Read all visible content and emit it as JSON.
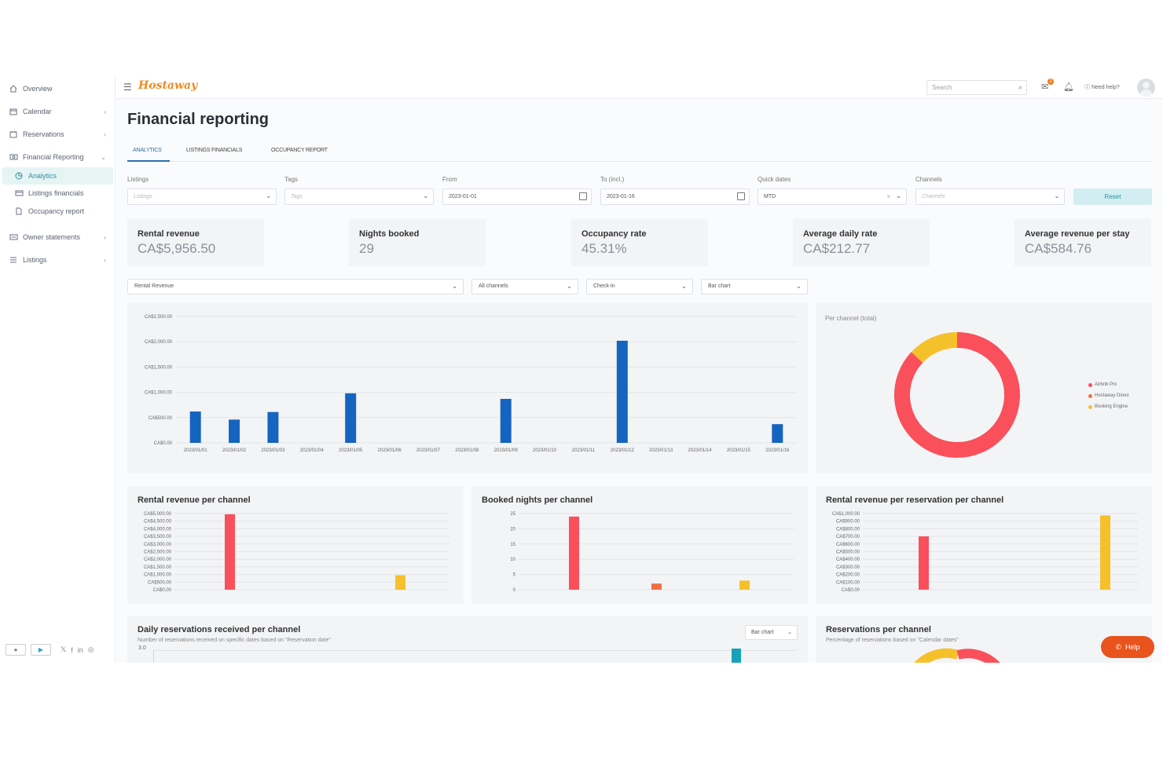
{
  "app": {
    "logo": "Hostaway"
  },
  "sidebar": {
    "items": [
      {
        "label": "Overview",
        "icon": "home-icon",
        "chevron": ""
      },
      {
        "label": "Calendar",
        "icon": "calendar-icon",
        "chevron": "‹"
      },
      {
        "label": "Reservations",
        "icon": "reservations-icon",
        "chevron": "‹"
      },
      {
        "label": "Financial Reporting",
        "icon": "financial-icon",
        "chevron": "⌄"
      },
      {
        "label": "Analytics",
        "icon": "pie-icon",
        "chevron": ""
      },
      {
        "label": "Listings financials",
        "icon": "card-icon",
        "chevron": ""
      },
      {
        "label": "Occupancy report",
        "icon": "document-icon",
        "chevron": ""
      },
      {
        "label": "Owner statements",
        "icon": "statement-icon",
        "chevron": "‹"
      },
      {
        "label": "Listings",
        "icon": "list-icon",
        "chevron": "‹"
      }
    ],
    "social": {
      "twitter": "𝕏",
      "facebook": "f",
      "linkedin": "in",
      "instagram": "◎"
    }
  },
  "topbar": {
    "search_placeholder": "Search",
    "notification_count": "2",
    "need_help": "Need help?"
  },
  "page": {
    "title": "Financial reporting"
  },
  "tabs": [
    "ANALYTICS",
    "LISTINGS FINANCIALS",
    "OCCUPANCY REPORT"
  ],
  "filters": {
    "listings": {
      "label": "Listings",
      "placeholder": "Listings"
    },
    "tags": {
      "label": "Tags",
      "placeholder": "Tags"
    },
    "from": {
      "label": "From",
      "value": "2023-01-01"
    },
    "to": {
      "label": "To (incl.)",
      "value": "2023-01-16"
    },
    "quick_dates": {
      "label": "Quick dates",
      "value": "MTD"
    },
    "channels": {
      "label": "Channels",
      "placeholder": "Channels"
    },
    "reset": "Reset"
  },
  "kpis": [
    {
      "label": "Rental revenue",
      "value": "CA$5,956.50"
    },
    {
      "label": "Nights booked",
      "value": "29"
    },
    {
      "label": "Occupancy rate",
      "value": "45.31%"
    },
    {
      "label": "Average daily rate",
      "value": "CA$212.77"
    },
    {
      "label": "Average revenue per stay",
      "value": "CA$584.76"
    }
  ],
  "chart_controls": [
    "Rental Revenue",
    "All channels",
    "Check-in",
    "Bar chart"
  ],
  "colors": {
    "airbnb": "#f9505b",
    "hostaway": "#f07040",
    "booking": "#f5c12a",
    "main_bar": "#1565c0",
    "teal": "#17a2b8"
  },
  "cards": {
    "per_channel_total": "Per channel (total)",
    "rev_per_channel": "Rental revenue per channel",
    "nights_per_channel": "Booked nights per channel",
    "rev_per_res": "Rental revenue per reservation per channel",
    "daily_res": {
      "title": "Daily reservations received per channel",
      "subtitle": "Number of reservations received on specific dates based on \"Reservation date\"",
      "button": "Bar chart"
    },
    "res_per_channel": {
      "title": "Reservations per channel",
      "subtitle": "Percentage of reservations based on \"Calendar dates\""
    }
  },
  "help_button": "Help",
  "chart_data": [
    {
      "type": "bar",
      "title": "",
      "categories": [
        "2023/01/01",
        "2023/01/02",
        "2023/01/03",
        "2023/01/04",
        "2023/01/05",
        "2023/01/06",
        "2023/01/07",
        "2023/01/08",
        "2023/01/09",
        "2023/01/10",
        "2023/01/11",
        "2023/01/12",
        "2023/01/13",
        "2023/01/14",
        "2023/01/15",
        "2023/01/16"
      ],
      "values": [
        620,
        460,
        610,
        0,
        980,
        0,
        0,
        0,
        870,
        0,
        0,
        2020,
        0,
        0,
        0,
        370
      ],
      "yticks": [
        "CA$0.00",
        "CA$500.00",
        "CA$1,000.00",
        "CA$1,500.00",
        "CA$2,000.00",
        "CA$2,500.00"
      ],
      "ylim": [
        0,
        2500
      ]
    },
    {
      "type": "pie",
      "title": "Per channel (total)",
      "labels": [
        "Airbnb Pro",
        "Hostaway Direct",
        "Booking Engine"
      ],
      "values": [
        87,
        0,
        13
      ]
    },
    {
      "type": "bar",
      "title": "Rental revenue per channel",
      "categories": [
        "Airbnb Pro",
        "Hostaway Direct",
        "Booking Engine"
      ],
      "values": [
        4950,
        0,
        950
      ],
      "yticks": [
        "CA$0.00",
        "CA$500.00",
        "CA$1,000.00",
        "CA$1,500.00",
        "CA$2,000.00",
        "CA$2,500.00",
        "CA$3,000.00",
        "CA$3,500.00",
        "CA$4,000.00",
        "CA$4,500.00",
        "CA$5,000.00"
      ],
      "ylim": [
        0,
        5000
      ]
    },
    {
      "type": "bar",
      "title": "Booked nights per channel",
      "categories": [
        "Airbnb Pro",
        "Hostaway Direct",
        "Booking Engine"
      ],
      "values": [
        24,
        2,
        3
      ],
      "yticks": [
        "0",
        "5",
        "10",
        "15",
        "20",
        "25"
      ],
      "ylim": [
        0,
        25
      ]
    },
    {
      "type": "bar",
      "title": "Rental revenue per reservation per channel",
      "categories": [
        "Airbnb Pro",
        "Booking Engine"
      ],
      "values": [
        700,
        975
      ],
      "yticks": [
        "CA$0.00",
        "CA$100.00",
        "CA$200.00",
        "CA$300.00",
        "CA$400.00",
        "CA$500.00",
        "CA$600.00",
        "CA$700.00",
        "CA$800.00",
        "CA$900.00",
        "CA$1,000.00"
      ],
      "ylim": [
        0,
        1000
      ]
    }
  ],
  "daily_res_axis_top": "3.0"
}
